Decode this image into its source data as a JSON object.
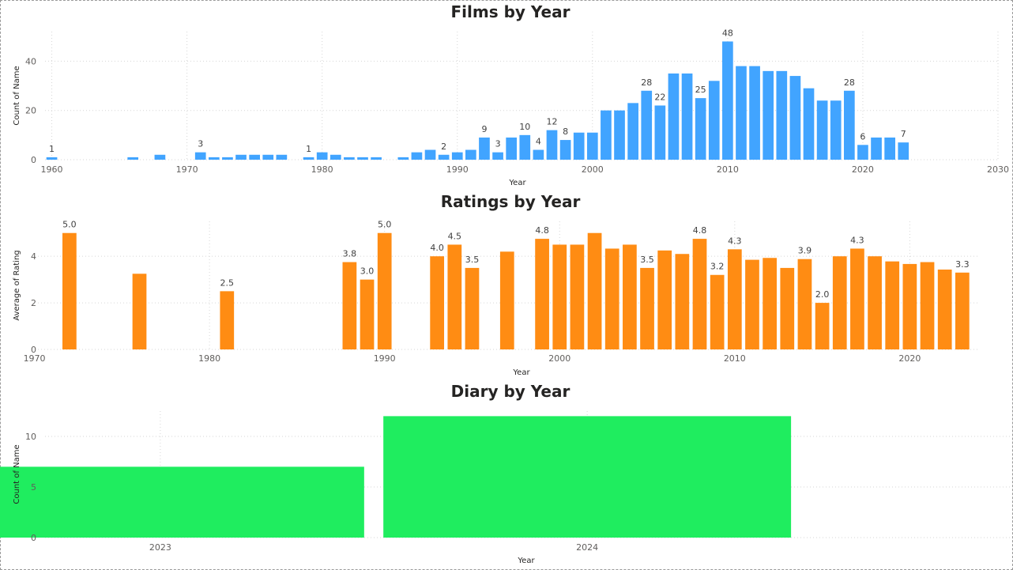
{
  "chart_data": [
    {
      "id": "films",
      "type": "bar",
      "title": "Films by Year",
      "xlabel": "Year",
      "ylabel": "Count of Name",
      "color": "#41a4ff",
      "xlim": [
        1959.5,
        2030
      ],
      "ylim": [
        0,
        52
      ],
      "xticks": [
        1960,
        1970,
        1980,
        1990,
        2000,
        2010,
        2020,
        2030
      ],
      "yticks": [
        0,
        20,
        40
      ],
      "x_gridlines": [
        1960,
        1970,
        1980,
        1990,
        2000,
        2010,
        2020,
        2030
      ],
      "x": [
        1960,
        1966,
        1968,
        1971,
        1972,
        1973,
        1974,
        1975,
        1976,
        1977,
        1979,
        1980,
        1981,
        1982,
        1983,
        1984,
        1986,
        1987,
        1988,
        1989,
        1990,
        1991,
        1992,
        1993,
        1994,
        1995,
        1996,
        1997,
        1998,
        1999,
        2000,
        2001,
        2002,
        2003,
        2004,
        2005,
        2006,
        2007,
        2008,
        2009,
        2010,
        2011,
        2012,
        2013,
        2014,
        2015,
        2016,
        2017,
        2018,
        2019,
        2020,
        2021,
        2022,
        2023
      ],
      "values": [
        1,
        1,
        2,
        3,
        1,
        1,
        2,
        2,
        2,
        2,
        1,
        3,
        2,
        1,
        1,
        1,
        1,
        3,
        4,
        2,
        3,
        4,
        9,
        3,
        9,
        10,
        4,
        12,
        8,
        11,
        11,
        20,
        20,
        23,
        28,
        22,
        35,
        35,
        25,
        32,
        48,
        38,
        38,
        36,
        36,
        34,
        29,
        24,
        24,
        28,
        6,
        9,
        9,
        7
      ],
      "data_labels": [
        {
          "x": 1960,
          "text": "1"
        },
        {
          "x": 1971,
          "text": "3"
        },
        {
          "x": 1979,
          "text": "1"
        },
        {
          "x": 1989,
          "text": "2"
        },
        {
          "x": 1992,
          "text": "9"
        },
        {
          "x": 1993,
          "text": "3"
        },
        {
          "x": 1995,
          "text": "10"
        },
        {
          "x": 1996,
          "text": "4"
        },
        {
          "x": 1997,
          "text": "12"
        },
        {
          "x": 1998,
          "text": "8"
        },
        {
          "x": 2004,
          "text": "28"
        },
        {
          "x": 2005,
          "text": "22"
        },
        {
          "x": 2008,
          "text": "25"
        },
        {
          "x": 2010,
          "text": "48"
        },
        {
          "x": 2019,
          "text": "28"
        },
        {
          "x": 2020,
          "text": "6"
        },
        {
          "x": 2023,
          "text": "7"
        }
      ]
    },
    {
      "id": "ratings",
      "type": "bar",
      "title": "Ratings by Year",
      "xlabel": "Year",
      "ylabel": "Average of Rating",
      "color": "#ff8c13",
      "xlim": [
        1970.2,
        2024
      ],
      "ylim": [
        0,
        5.5
      ],
      "xticks": [
        1970,
        1980,
        1990,
        2000,
        2010,
        2020
      ],
      "yticks": [
        0,
        2,
        4
      ],
      "x_gridlines": [
        1980,
        1990,
        2000,
        2010,
        2020
      ],
      "x": [
        1972,
        1976,
        1981,
        1988,
        1989,
        1990,
        1993,
        1994,
        1995,
        1997,
        1999,
        2000,
        2001,
        2002,
        2003,
        2004,
        2005,
        2006,
        2007,
        2008,
        2009,
        2010,
        2011,
        2012,
        2013,
        2014,
        2015,
        2016,
        2017,
        2018,
        2019,
        2020,
        2021,
        2022,
        2023
      ],
      "values": [
        5.0,
        3.25,
        2.5,
        3.75,
        3.0,
        5.0,
        4.0,
        4.5,
        3.5,
        4.2,
        4.75,
        4.5,
        4.5,
        5.0,
        4.33,
        4.5,
        3.5,
        4.25,
        4.1,
        4.75,
        3.2,
        4.3,
        3.85,
        3.93,
        3.5,
        3.88,
        2.0,
        4.0,
        4.33,
        4.0,
        3.78,
        3.67,
        3.75,
        3.43,
        3.3
      ],
      "data_labels": [
        {
          "x": 1972,
          "text": "5.0"
        },
        {
          "x": 1981,
          "text": "2.5"
        },
        {
          "x": 1988,
          "text": "3.8"
        },
        {
          "x": 1989,
          "text": "3.0"
        },
        {
          "x": 1990,
          "text": "5.0"
        },
        {
          "x": 1993,
          "text": "4.0"
        },
        {
          "x": 1994,
          "text": "4.5"
        },
        {
          "x": 1995,
          "text": "3.5"
        },
        {
          "x": 1999,
          "text": "4.8"
        },
        {
          "x": 2005,
          "text": "3.5"
        },
        {
          "x": 2008,
          "text": "4.8"
        },
        {
          "x": 2009,
          "text": "3.2"
        },
        {
          "x": 2010,
          "text": "4.3"
        },
        {
          "x": 2014,
          "text": "3.9"
        },
        {
          "x": 2015,
          "text": "2.0"
        },
        {
          "x": 2017,
          "text": "4.3"
        },
        {
          "x": 2023,
          "text": "3.3"
        }
      ]
    },
    {
      "id": "diary",
      "type": "bar",
      "title": "Diary by Year",
      "xlabel": "Year",
      "ylabel": "Count of Name",
      "color": "#1fed5f",
      "xlim": [
        2022.73,
        2024.99
      ],
      "ylim": [
        0,
        12.5
      ],
      "xticks": [
        2023,
        2024
      ],
      "yticks": [
        0,
        5,
        10
      ],
      "x_gridlines": [
        2023,
        2024
      ],
      "bar_width": 0.955,
      "x": [
        2023,
        2024
      ],
      "values": [
        7,
        12
      ],
      "data_labels": []
    }
  ]
}
